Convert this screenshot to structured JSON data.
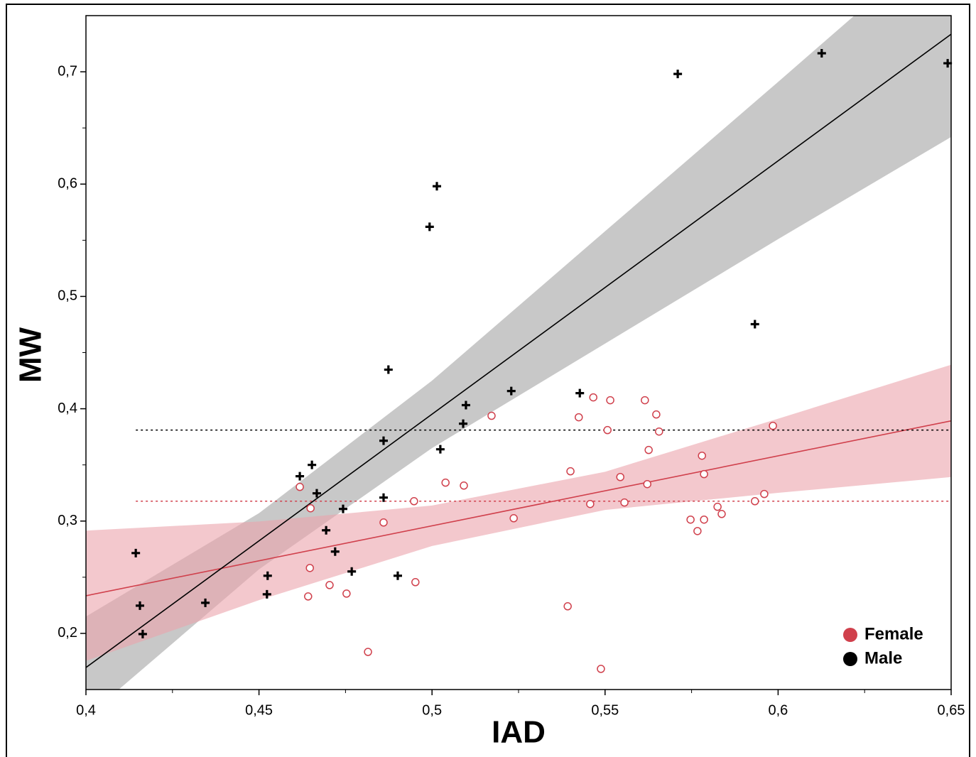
{
  "chart_data": {
    "type": "scatter",
    "x_label": "IAD",
    "y_label": "MW",
    "xlim": [
      0.4,
      0.65
    ],
    "ylim": [
      0.15,
      0.75
    ],
    "xticks": [
      {
        "value": 0.4,
        "label": "0,4"
      },
      {
        "value": 0.45,
        "label": "0,45"
      },
      {
        "value": 0.5,
        "label": "0,5"
      },
      {
        "value": 0.55,
        "label": "0,55"
      },
      {
        "value": 0.6,
        "label": "0,6"
      },
      {
        "value": 0.65,
        "label": "0,65"
      }
    ],
    "xminorticks": [
      0.425,
      0.475,
      0.525,
      0.575,
      0.625
    ],
    "yticks": [
      {
        "value": 0.2,
        "label": "0,2"
      },
      {
        "value": 0.3,
        "label": "0,3"
      },
      {
        "value": 0.4,
        "label": "0,4"
      },
      {
        "value": 0.5,
        "label": "0,5"
      },
      {
        "value": 0.6,
        "label": "0,6"
      },
      {
        "value": 0.7,
        "label": "0,7"
      }
    ],
    "yminorticks": [
      0.25,
      0.35,
      0.45,
      0.55,
      0.65
    ],
    "legend": "lower right",
    "series": [
      {
        "name": "Female",
        "color": "#d0404c",
        "marker": "circle",
        "band_color": "#eba3ab",
        "x": [
          0.4618,
          0.4649,
          0.4647,
          0.4642,
          0.4704,
          0.4753,
          0.4815,
          0.486,
          0.4948,
          0.4952,
          0.5039,
          0.5092,
          0.5172,
          0.5236,
          0.5392,
          0.54,
          0.5424,
          0.5457,
          0.5466,
          0.5488,
          0.5507,
          0.5515,
          0.5544,
          0.5556,
          0.5615,
          0.5622,
          0.5626,
          0.5648,
          0.5656,
          0.5747,
          0.5767,
          0.578,
          0.5786,
          0.5786,
          0.5825,
          0.5837,
          0.5933,
          0.596,
          0.5985
        ],
        "values": [
          0.3304,
          0.3114,
          0.2582,
          0.2329,
          0.243,
          0.2354,
          0.1835,
          0.2987,
          0.3177,
          0.2456,
          0.3342,
          0.3316,
          0.3937,
          0.3025,
          0.2241,
          0.3443,
          0.3924,
          0.3152,
          0.4101,
          0.1684,
          0.381,
          0.4076,
          0.3392,
          0.3165,
          0.4076,
          0.3329,
          0.3633,
          0.3949,
          0.3797,
          0.3013,
          0.2911,
          0.3582,
          0.3418,
          0.3013,
          0.3127,
          0.3063,
          0.3177,
          0.3241,
          0.3848
        ],
        "fit": {
          "x": [
            0.4,
            0.65
          ],
          "values": [
            0.2335,
            0.3892
          ]
        },
        "band": {
          "x": [
            0.4,
            0.45,
            0.5,
            0.55,
            0.6,
            0.65
          ],
          "lower": [
            0.1755,
            0.2296,
            0.2778,
            0.3099,
            0.3251,
            0.3392
          ],
          "upper": [
            0.2915,
            0.2996,
            0.3138,
            0.3439,
            0.3911,
            0.4392
          ]
        },
        "mean": {
          "x": [
            0.4144,
            0.65
          ],
          "values": [
            0.3177,
            0.3177
          ]
        }
      },
      {
        "name": "Male",
        "color": "#000000",
        "marker": "plus",
        "band_color": "#c8c8c8",
        "x": [
          0.4144,
          0.4156,
          0.4164,
          0.4345,
          0.4523,
          0.4525,
          0.4618,
          0.4653,
          0.4667,
          0.4694,
          0.472,
          0.4743,
          0.4768,
          0.486,
          0.486,
          0.4874,
          0.4901,
          0.4993,
          0.5014,
          0.5024,
          0.509,
          0.5098,
          0.5229,
          0.5427,
          0.571,
          0.5933,
          0.6126,
          0.649
        ],
        "values": [
          0.2715,
          0.2247,
          0.1994,
          0.2272,
          0.2348,
          0.2513,
          0.3399,
          0.35,
          0.3247,
          0.2918,
          0.2728,
          0.3108,
          0.2551,
          0.3209,
          0.3715,
          0.4348,
          0.2513,
          0.562,
          0.5981,
          0.3639,
          0.3867,
          0.4032,
          0.4158,
          0.4139,
          0.6981,
          0.4753,
          0.7165,
          0.7076
        ],
        "fit": {
          "x": [
            0.4,
            0.65
          ],
          "values": [
            0.1696,
            0.7335
          ]
        },
        "band": {
          "x": [
            0.4,
            0.45,
            0.5,
            0.55,
            0.6,
            0.65
          ],
          "lower": [
            0.125,
            0.257,
            0.365,
            0.458,
            0.551,
            0.642
          ],
          "upper": [
            0.215,
            0.307,
            0.425,
            0.558,
            0.691,
            0.825
          ]
        },
        "mean": {
          "x": [
            0.4144,
            0.65
          ],
          "values": [
            0.381,
            0.381
          ]
        }
      }
    ]
  }
}
